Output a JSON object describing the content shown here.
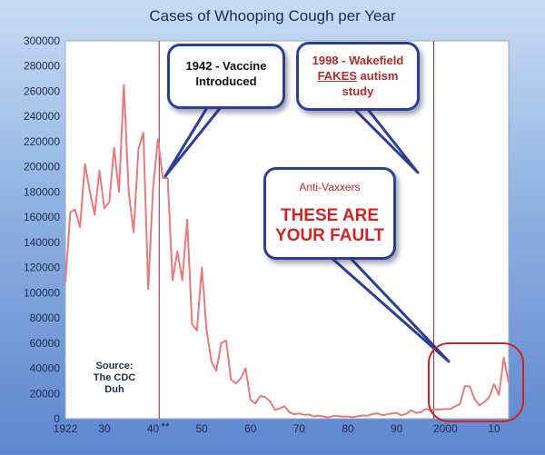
{
  "chart_data": {
    "type": "line",
    "title": "Cases of Whooping Cough per Year",
    "ylim": [
      0,
      300000
    ],
    "xlim": [
      1922,
      2013
    ],
    "y_ticks": [
      "0",
      "20000",
      "40000",
      "60000",
      "80000",
      "100000",
      "120000",
      "140000",
      "160000",
      "180000",
      "200000",
      "220000",
      "240000",
      "260000",
      "280000",
      "300000"
    ],
    "x_ticks": [
      {
        "value": 1922,
        "label": "1922"
      },
      {
        "value": 1930,
        "label": "30"
      },
      {
        "value": 1940,
        "label": "40"
      },
      {
        "value": 1950,
        "label": "50"
      },
      {
        "value": 1960,
        "label": "60"
      },
      {
        "value": 1970,
        "label": "70"
      },
      {
        "value": 1980,
        "label": "80"
      },
      {
        "value": 1990,
        "label": "90"
      },
      {
        "value": 2000,
        "label": "2000"
      },
      {
        "value": 2010,
        "label": "10"
      }
    ],
    "tick_suffix": "**",
    "grid": false,
    "series": [
      {
        "color": "#e87a7a",
        "x": [
          1922,
          1923,
          1924,
          1925,
          1926,
          1927,
          1928,
          1929,
          1930,
          1931,
          1932,
          1933,
          1934,
          1935,
          1936,
          1937,
          1938,
          1939,
          1940,
          1941,
          1942,
          1943,
          1944,
          1945,
          1946,
          1947,
          1948,
          1949,
          1950,
          1951,
          1952,
          1953,
          1954,
          1955,
          1956,
          1957,
          1958,
          1959,
          1960,
          1961,
          1962,
          1963,
          1964,
          1965,
          1966,
          1967,
          1968,
          1969,
          1970,
          1971,
          1972,
          1973,
          1974,
          1975,
          1976,
          1977,
          1978,
          1979,
          1980,
          1981,
          1982,
          1983,
          1984,
          1985,
          1986,
          1987,
          1988,
          1989,
          1990,
          1991,
          1992,
          1993,
          1994,
          1995,
          1996,
          1997,
          1998,
          1999,
          2000,
          2001,
          2002,
          2003,
          2004,
          2005,
          2006,
          2007,
          2008,
          2009,
          2010,
          2011,
          2012,
          2013
        ],
        "values": [
          108000,
          164000,
          166000,
          152000,
          202000,
          181000,
          162000,
          197000,
          167000,
          172000,
          215000,
          180000,
          265000,
          180000,
          148000,
          214000,
          227000,
          103000,
          183000,
          222000,
          191000,
          191000,
          110000,
          133000,
          110000,
          158000,
          75000,
          70000,
          120000,
          70000,
          45000,
          38000,
          60000,
          62000,
          31000,
          28000,
          32000,
          40000,
          15000,
          12000,
          18000,
          17000,
          14000,
          7000,
          8000,
          10000,
          5000,
          3500,
          4200,
          3000,
          3300,
          1800,
          2400,
          1700,
          1000,
          2200,
          2000,
          1600,
          1700,
          1250,
          1900,
          2500,
          2300,
          3600,
          4200,
          2800,
          3400,
          4200,
          4600,
          2700,
          4000,
          6600,
          4600,
          5100,
          7800,
          6600,
          7400,
          7300,
          7800,
          7600,
          9800,
          11600,
          25800,
          25600,
          15600,
          10500,
          13300,
          16900,
          27500,
          18700,
          48300,
          28600
        ]
      }
    ]
  },
  "annotations": {
    "vaccine_lines": [
      "1942 - Vaccine",
      "Introduced"
    ],
    "wakefield": {
      "line1": "1998 - Wakefield",
      "fakes": "FAKES",
      "autism": " autism",
      "line3": "study"
    },
    "antivax": {
      "small": "Anti-Vaxxers",
      "big1": "THESE ARE",
      "big2": "YOUR FAULT"
    },
    "source_lines": [
      "Source:",
      "The CDC",
      "Duh"
    ]
  },
  "colors": {
    "line": "#e87a7a",
    "vlines": "#8b2a3c",
    "circle": "#d32020",
    "callout_border": "#2c3f95"
  }
}
